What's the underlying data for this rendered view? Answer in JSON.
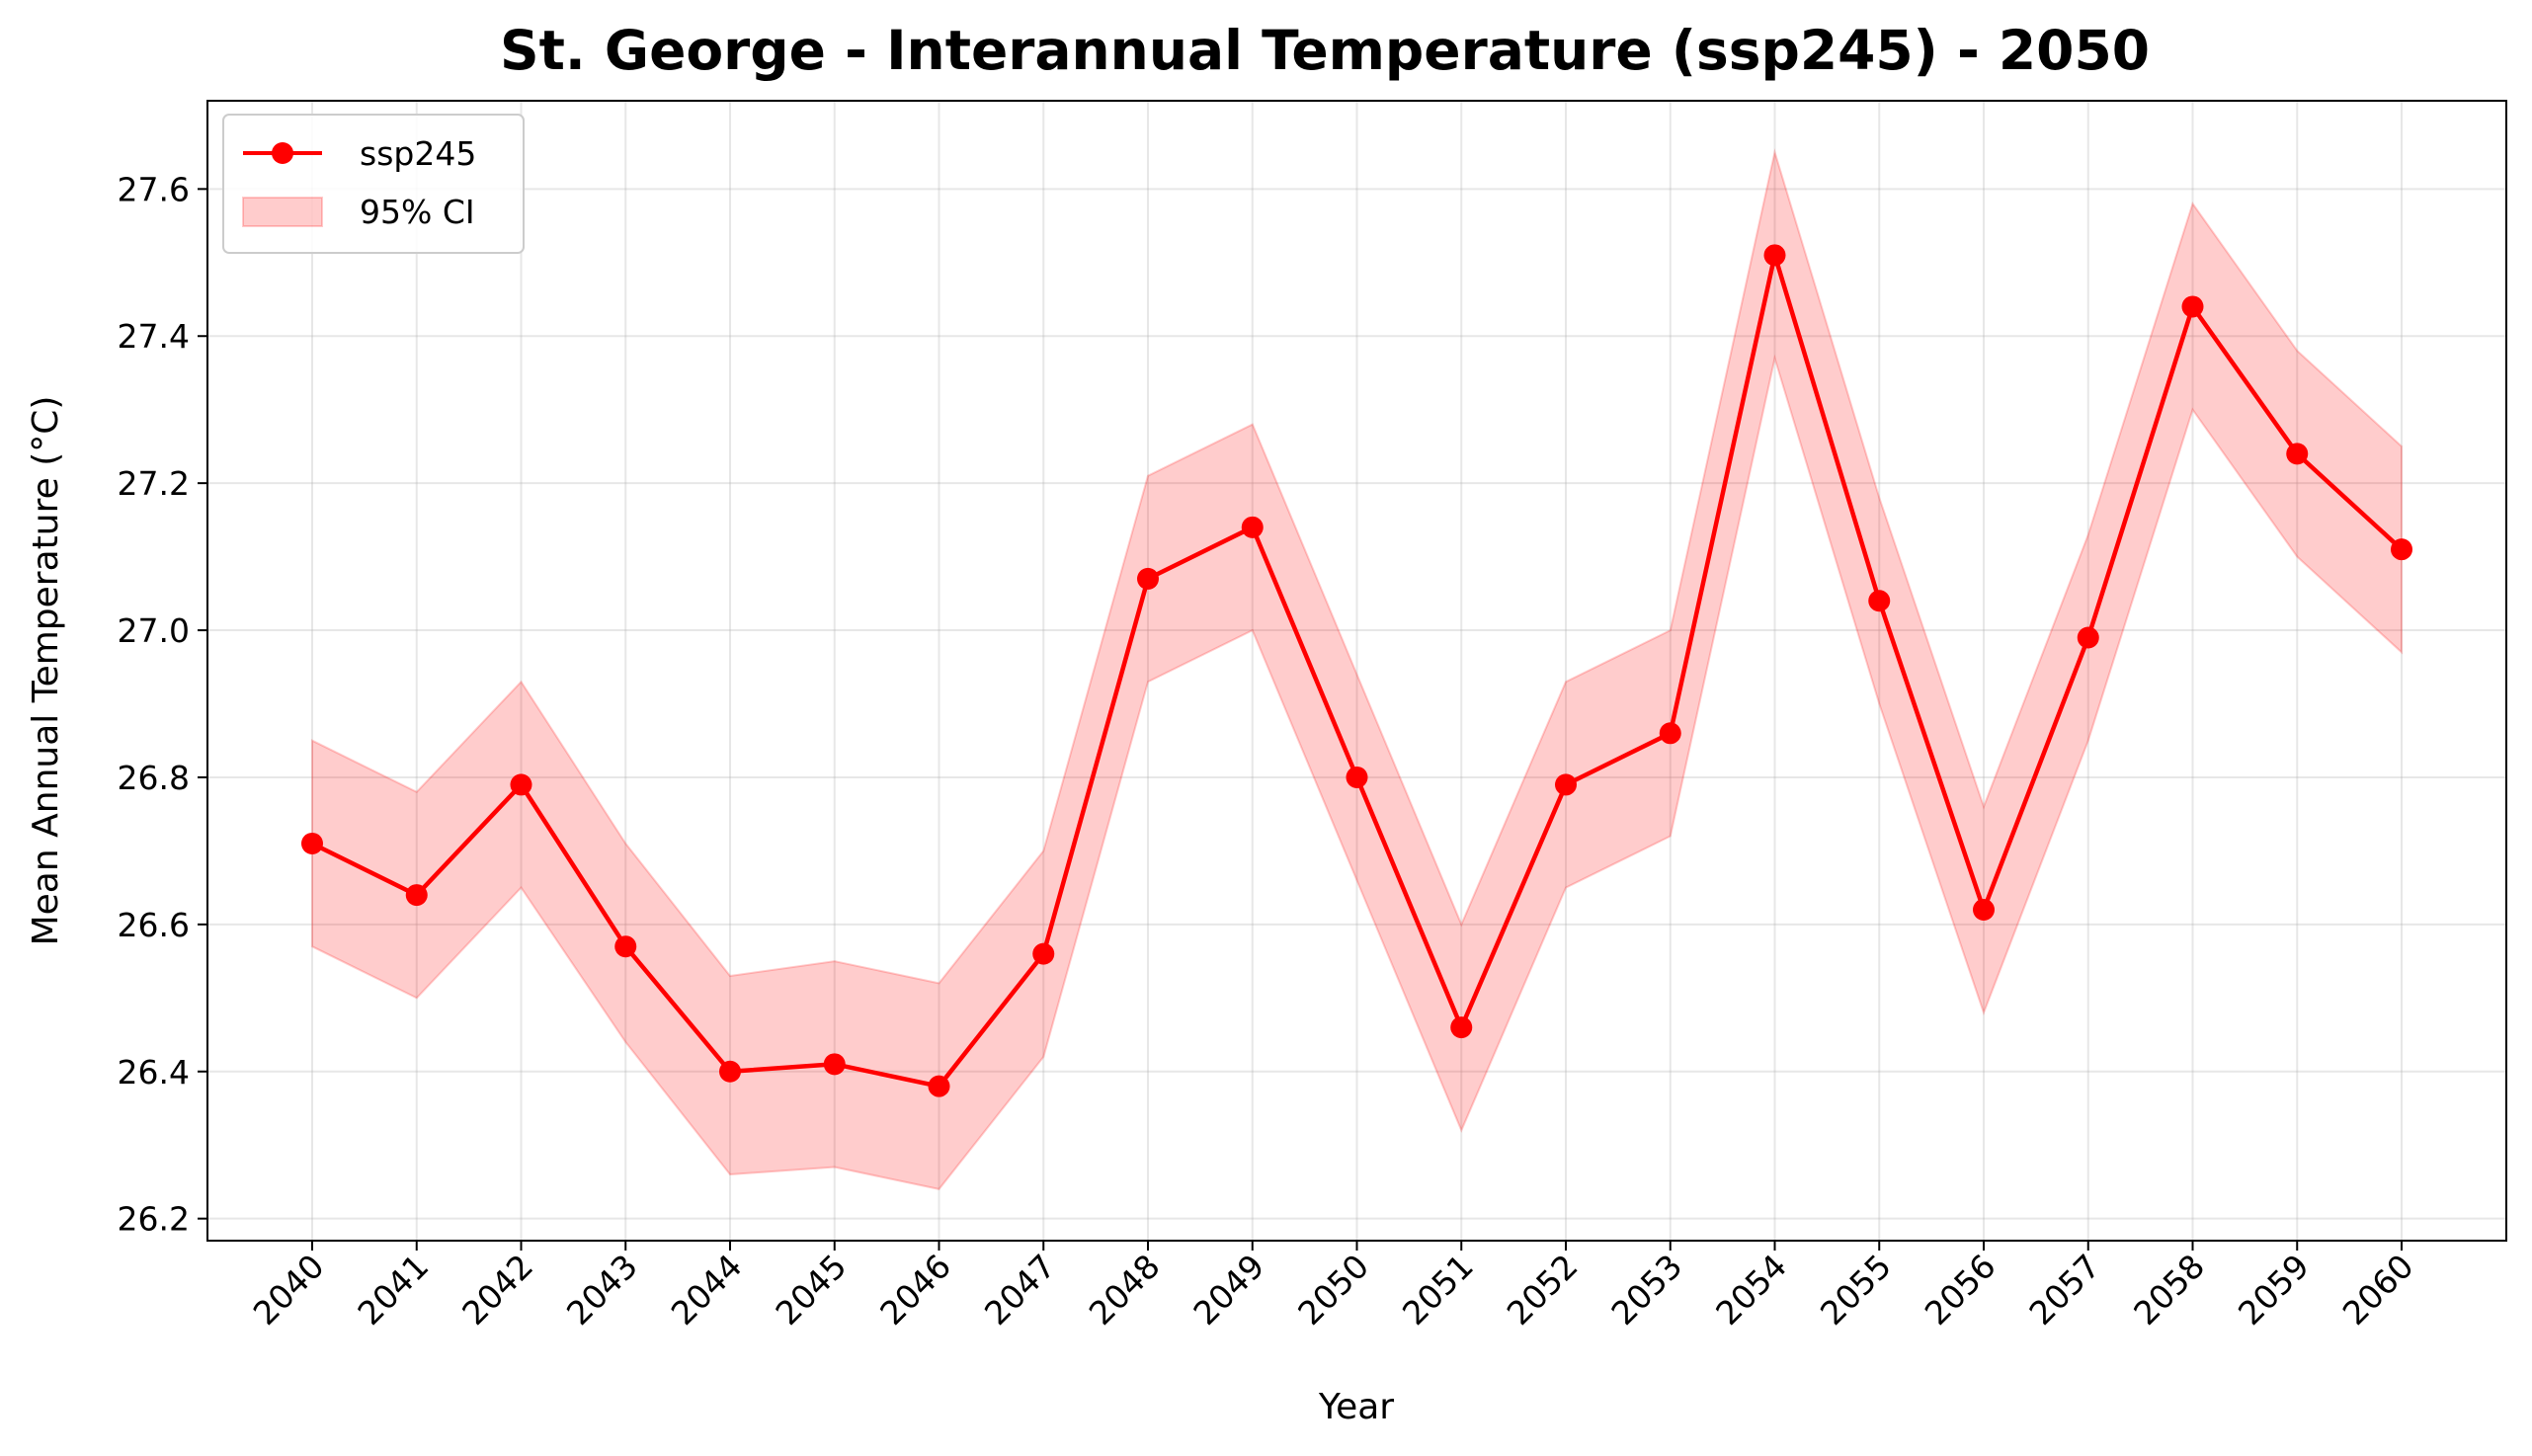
{
  "chart_data": {
    "type": "line",
    "title": "St. George - Interannual Temperature (ssp245) - 2050",
    "xlabel": "Year",
    "ylabel": "Mean Annual Temperature (°C)",
    "x": [
      2040,
      2041,
      2042,
      2043,
      2044,
      2045,
      2046,
      2047,
      2048,
      2049,
      2050,
      2051,
      2052,
      2053,
      2054,
      2055,
      2056,
      2057,
      2058,
      2059,
      2060
    ],
    "x_tick_labels": [
      "2040",
      "2041",
      "2042",
      "2043",
      "2044",
      "2045",
      "2046",
      "2047",
      "2048",
      "2049",
      "2050",
      "2051",
      "2052",
      "2053",
      "2054",
      "2055",
      "2056",
      "2057",
      "2058",
      "2059",
      "2060"
    ],
    "ylim": [
      26.17,
      27.72
    ],
    "y_ticks": [
      26.2,
      26.4,
      26.6,
      26.8,
      27.0,
      27.2,
      27.4,
      27.6
    ],
    "y_tick_labels": [
      "26.2",
      "26.4",
      "26.6",
      "26.8",
      "27.0",
      "27.2",
      "27.4",
      "27.6"
    ],
    "series": [
      {
        "name": "ssp245",
        "color": "#ff0000",
        "values": [
          26.71,
          26.64,
          26.79,
          26.57,
          26.4,
          26.41,
          26.38,
          26.56,
          27.07,
          27.14,
          26.8,
          26.46,
          26.79,
          26.86,
          27.51,
          27.04,
          26.62,
          26.99,
          27.44,
          27.24,
          27.11
        ]
      }
    ],
    "confidence_band": {
      "name": "95% CI",
      "color": "#ff0000",
      "lower": [
        26.57,
        26.5,
        26.65,
        26.44,
        26.26,
        26.27,
        26.24,
        26.42,
        26.93,
        27.0,
        26.66,
        26.32,
        26.65,
        26.72,
        27.37,
        26.9,
        26.48,
        26.85,
        27.3,
        27.1,
        26.97
      ],
      "upper": [
        26.85,
        26.78,
        26.93,
        26.71,
        26.53,
        26.55,
        26.52,
        26.7,
        27.21,
        27.28,
        26.94,
        26.6,
        26.93,
        27.0,
        27.65,
        27.18,
        26.76,
        27.13,
        27.58,
        27.38,
        27.25
      ]
    },
    "grid": true,
    "legend_position": "top-left"
  }
}
